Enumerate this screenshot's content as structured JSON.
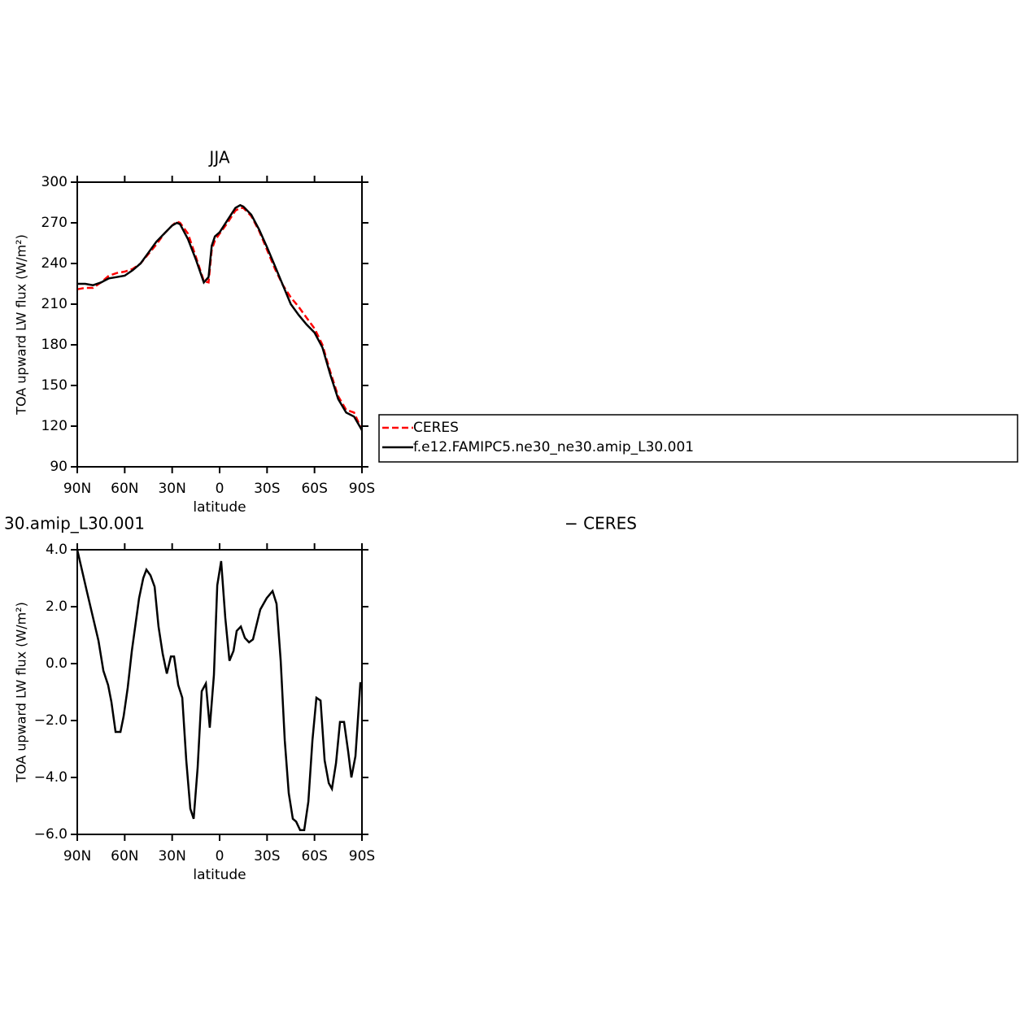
{
  "chart_data": [
    {
      "type": "line",
      "title": "JJA",
      "ylabel": "TOA upward LW flux (W/m²)",
      "xlabel": "latitude",
      "x": [
        90,
        85,
        80,
        75,
        70,
        65,
        60,
        55,
        50,
        45,
        40,
        35,
        30,
        27,
        25,
        20,
        15,
        10,
        7,
        5,
        3,
        0,
        -5,
        -10,
        -13,
        -15,
        -20,
        -25,
        -30,
        -35,
        -40,
        -45,
        -50,
        -55,
        -60,
        -65,
        -70,
        -75,
        -80,
        -85,
        -90
      ],
      "series": [
        {
          "name": "CERES",
          "color": "#ff0000",
          "dash": true,
          "values": [
            221,
            222,
            222,
            226,
            231,
            233,
            234,
            236,
            240,
            247,
            254,
            262,
            268,
            271,
            270,
            262,
            245,
            227,
            226,
            250,
            257,
            262,
            270,
            279,
            281,
            281,
            275,
            264,
            250,
            236,
            224,
            215,
            208,
            200,
            192,
            180,
            160,
            142,
            132,
            130,
            117
          ]
        },
        {
          "name": "f.e12.FAMIPC5.ne30_ne30.amip_L30.001",
          "color": "#000000",
          "dash": false,
          "values": [
            225,
            225,
            224,
            226,
            229,
            230,
            231,
            235,
            240,
            248,
            256,
            262,
            268,
            270,
            269,
            258,
            243,
            226,
            230,
            253,
            260,
            263,
            272,
            281,
            283,
            282,
            276,
            265,
            252,
            238,
            224,
            210,
            202,
            195,
            189,
            178,
            158,
            140,
            130,
            127,
            117
          ]
        }
      ],
      "xlim": [
        90,
        -90
      ],
      "xticks": [
        {
          "value": 90,
          "label": "90N"
        },
        {
          "value": 60,
          "label": "60N"
        },
        {
          "value": 30,
          "label": "30N"
        },
        0,
        {
          "value": -30,
          "label": "30S"
        },
        {
          "value": -60,
          "label": "60S"
        },
        {
          "value": -90,
          "label": "90S"
        }
      ],
      "ylim": [
        90,
        300
      ],
      "yticks": [
        90,
        120,
        150,
        180,
        210,
        240,
        270,
        300
      ]
    },
    {
      "type": "line",
      "title_parts": [
        "30.amip_L30.001",
        "− CERES"
      ],
      "ylabel": "TOA upward LW flux (W/m²)",
      "xlabel": "latitude",
      "x": [
        90,
        83.8,
        76.6,
        73.5,
        70.5,
        68.4,
        65.8,
        62.7,
        60.7,
        58.1,
        55.5,
        50.9,
        48.3,
        46.3,
        43.7,
        41.1,
        38.6,
        36.0,
        33.4,
        30.8,
        28.8,
        26.2,
        23.6,
        21.1,
        18.5,
        16.4,
        13.9,
        11.3,
        8.7,
        6.2,
        3.6,
        1.5,
        -1.0,
        -3.6,
        -6.2,
        -8.8,
        -10.8,
        -13.4,
        -16.0,
        -18.6,
        -21.1,
        -25.7,
        -29.8,
        -33.5,
        -36.0,
        -38.6,
        -41.2,
        -43.7,
        -46.3,
        -48.4,
        -50.9,
        -53.5,
        -56.1,
        -58.7,
        -61.2,
        -63.8,
        -66.4,
        -69.0,
        -71.0,
        -73.6,
        -76.1,
        -78.7,
        -81.3,
        -83.3,
        -85.9,
        -89.0
      ],
      "series": [
        {
          "color": "#000000",
          "dash": false,
          "values": [
            4.0,
            2.5,
            0.8,
            -0.25,
            -0.75,
            -1.35,
            -2.4,
            -2.4,
            -1.85,
            -0.85,
            0.45,
            2.3,
            3.0,
            3.3,
            3.1,
            2.7,
            1.3,
            0.35,
            -0.35,
            0.25,
            0.25,
            -0.75,
            -1.2,
            -3.4,
            -5.1,
            -5.45,
            -3.65,
            -0.97,
            -0.7,
            -2.25,
            -0.4,
            2.75,
            3.6,
            1.6,
            0.1,
            0.45,
            1.15,
            1.3,
            0.9,
            0.75,
            0.85,
            1.9,
            2.3,
            2.55,
            2.1,
            0.1,
            -2.7,
            -4.55,
            -5.45,
            -5.55,
            -5.85,
            -5.85,
            -4.85,
            -2.7,
            -1.2,
            -1.3,
            -3.4,
            -4.2,
            -4.4,
            -3.5,
            -2.05,
            -2.05,
            -3.1,
            -4.0,
            -3.25,
            -0.65
          ]
        }
      ],
      "xlim": [
        90,
        -90
      ],
      "xticks": [
        {
          "value": 90,
          "label": "90N"
        },
        {
          "value": 60,
          "label": "60N"
        },
        {
          "value": 30,
          "label": "30N"
        },
        0,
        {
          "value": -30,
          "label": "30S"
        },
        {
          "value": -60,
          "label": "60S"
        },
        {
          "value": -90,
          "label": "90S"
        }
      ],
      "ylim": [
        -6,
        4
      ],
      "yticks": [
        {
          "value": 4,
          "label": "4.0"
        },
        {
          "value": 2,
          "label": "2.0"
        },
        {
          "value": 0,
          "label": "0.0"
        },
        {
          "value": -2,
          "label": "−2.0"
        },
        {
          "value": -4,
          "label": "−4.0"
        },
        {
          "value": -6,
          "label": "−6.0"
        }
      ]
    }
  ]
}
